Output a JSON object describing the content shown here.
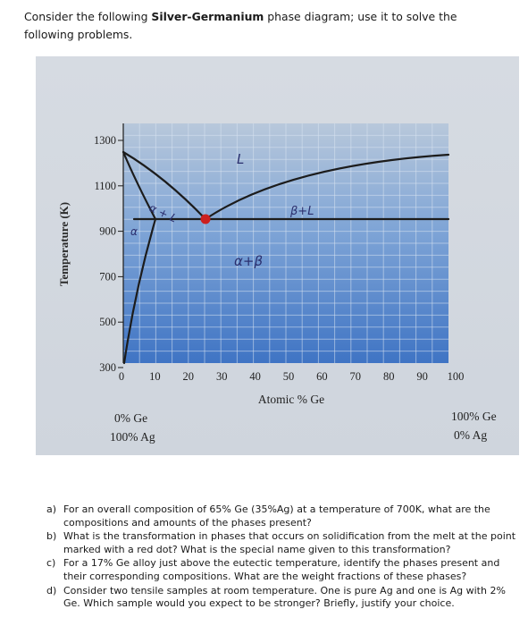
{
  "intro": {
    "prefix": "Consider the following ",
    "bold": "Silver-Germanium",
    "suffix": " phase diagram; use it to solve the following problems."
  },
  "diagram": {
    "y_axis_label": "Temperature (K)",
    "x_axis_label": "Atomic % Ge",
    "y_ticks": [
      "1300",
      "1100",
      "900",
      "700",
      "500",
      "300"
    ],
    "x_ticks": [
      "0",
      "10",
      "20",
      "30",
      "40",
      "50",
      "60",
      "70",
      "80",
      "90",
      "100"
    ],
    "left_end": {
      "line1": "0% Ge",
      "line2": "100% Ag"
    },
    "right_end": {
      "line1": "100% Ge",
      "line2": "0% Ag"
    },
    "regions": {
      "liquid": "L",
      "alpha": "α",
      "alpha_liquid": "α + L",
      "beta_liquid": "β+L",
      "alpha_beta": "α+β"
    },
    "colors": {
      "plot_top": "#b8c8db",
      "plot_bottom": "#3f74c4",
      "line": "#1c1c1c",
      "eutectic_dot": "#cc1f1f"
    }
  },
  "questions": [
    {
      "letter": "a)",
      "text": "For an overall composition of 65% Ge (35%Ag) at a temperature of 700K, what are the compositions and amounts of the phases present?"
    },
    {
      "letter": "b)",
      "text": "What is the transformation in phases that occurs on solidification from the melt at the point marked with a red dot? What is the special name given to this transformation?"
    },
    {
      "letter": "c)",
      "text": "For a 17% Ge alloy just above the eutectic temperature, identify the phases present and their corresponding compositions. What are the weight fractions of these phases?"
    },
    {
      "letter": "d)",
      "text": "Consider two tensile samples at room temperature. One is pure Ag and one is Ag with 2% Ge. Which sample would you expect to be stronger? Briefly, justify your choice."
    }
  ]
}
